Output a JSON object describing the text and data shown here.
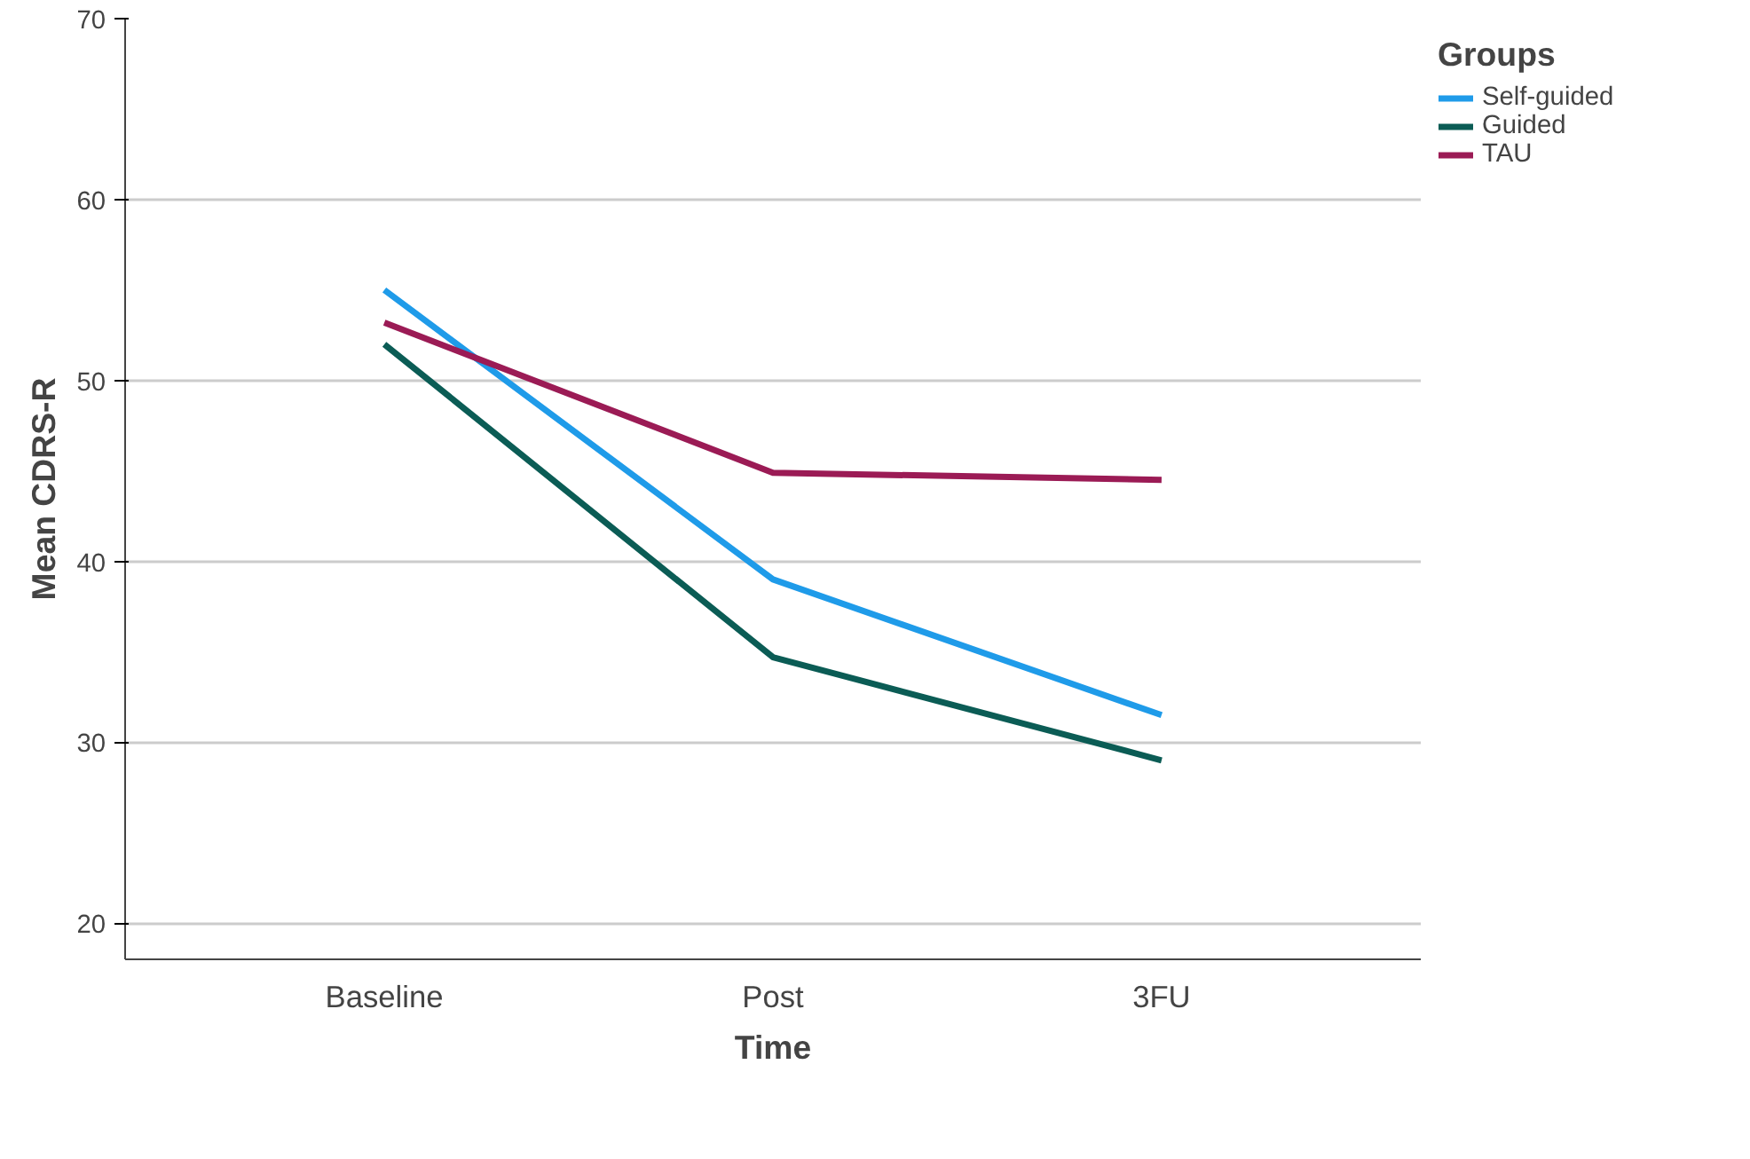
{
  "chart_data": {
    "type": "line",
    "xlabel": "Time",
    "ylabel": "Mean CDRS-R",
    "legend_title": "Groups",
    "categories": [
      "Baseline",
      "Post",
      "3FU"
    ],
    "series": [
      {
        "name": "Self-guided",
        "color": "#1f9be9",
        "values": [
          55.0,
          39.0,
          31.5
        ]
      },
      {
        "name": "Guided",
        "color": "#0b5c55",
        "values": [
          52.0,
          34.7,
          29.0
        ]
      },
      {
        "name": "TAU",
        "color": "#9b1b55",
        "values": [
          53.2,
          44.9,
          44.5
        ]
      }
    ],
    "ylim": [
      18,
      70
    ],
    "yticks": [
      20,
      30,
      40,
      50,
      60,
      70
    ],
    "grid": "y",
    "legend": "top right",
    "line_style": "solid",
    "marker": "none"
  }
}
